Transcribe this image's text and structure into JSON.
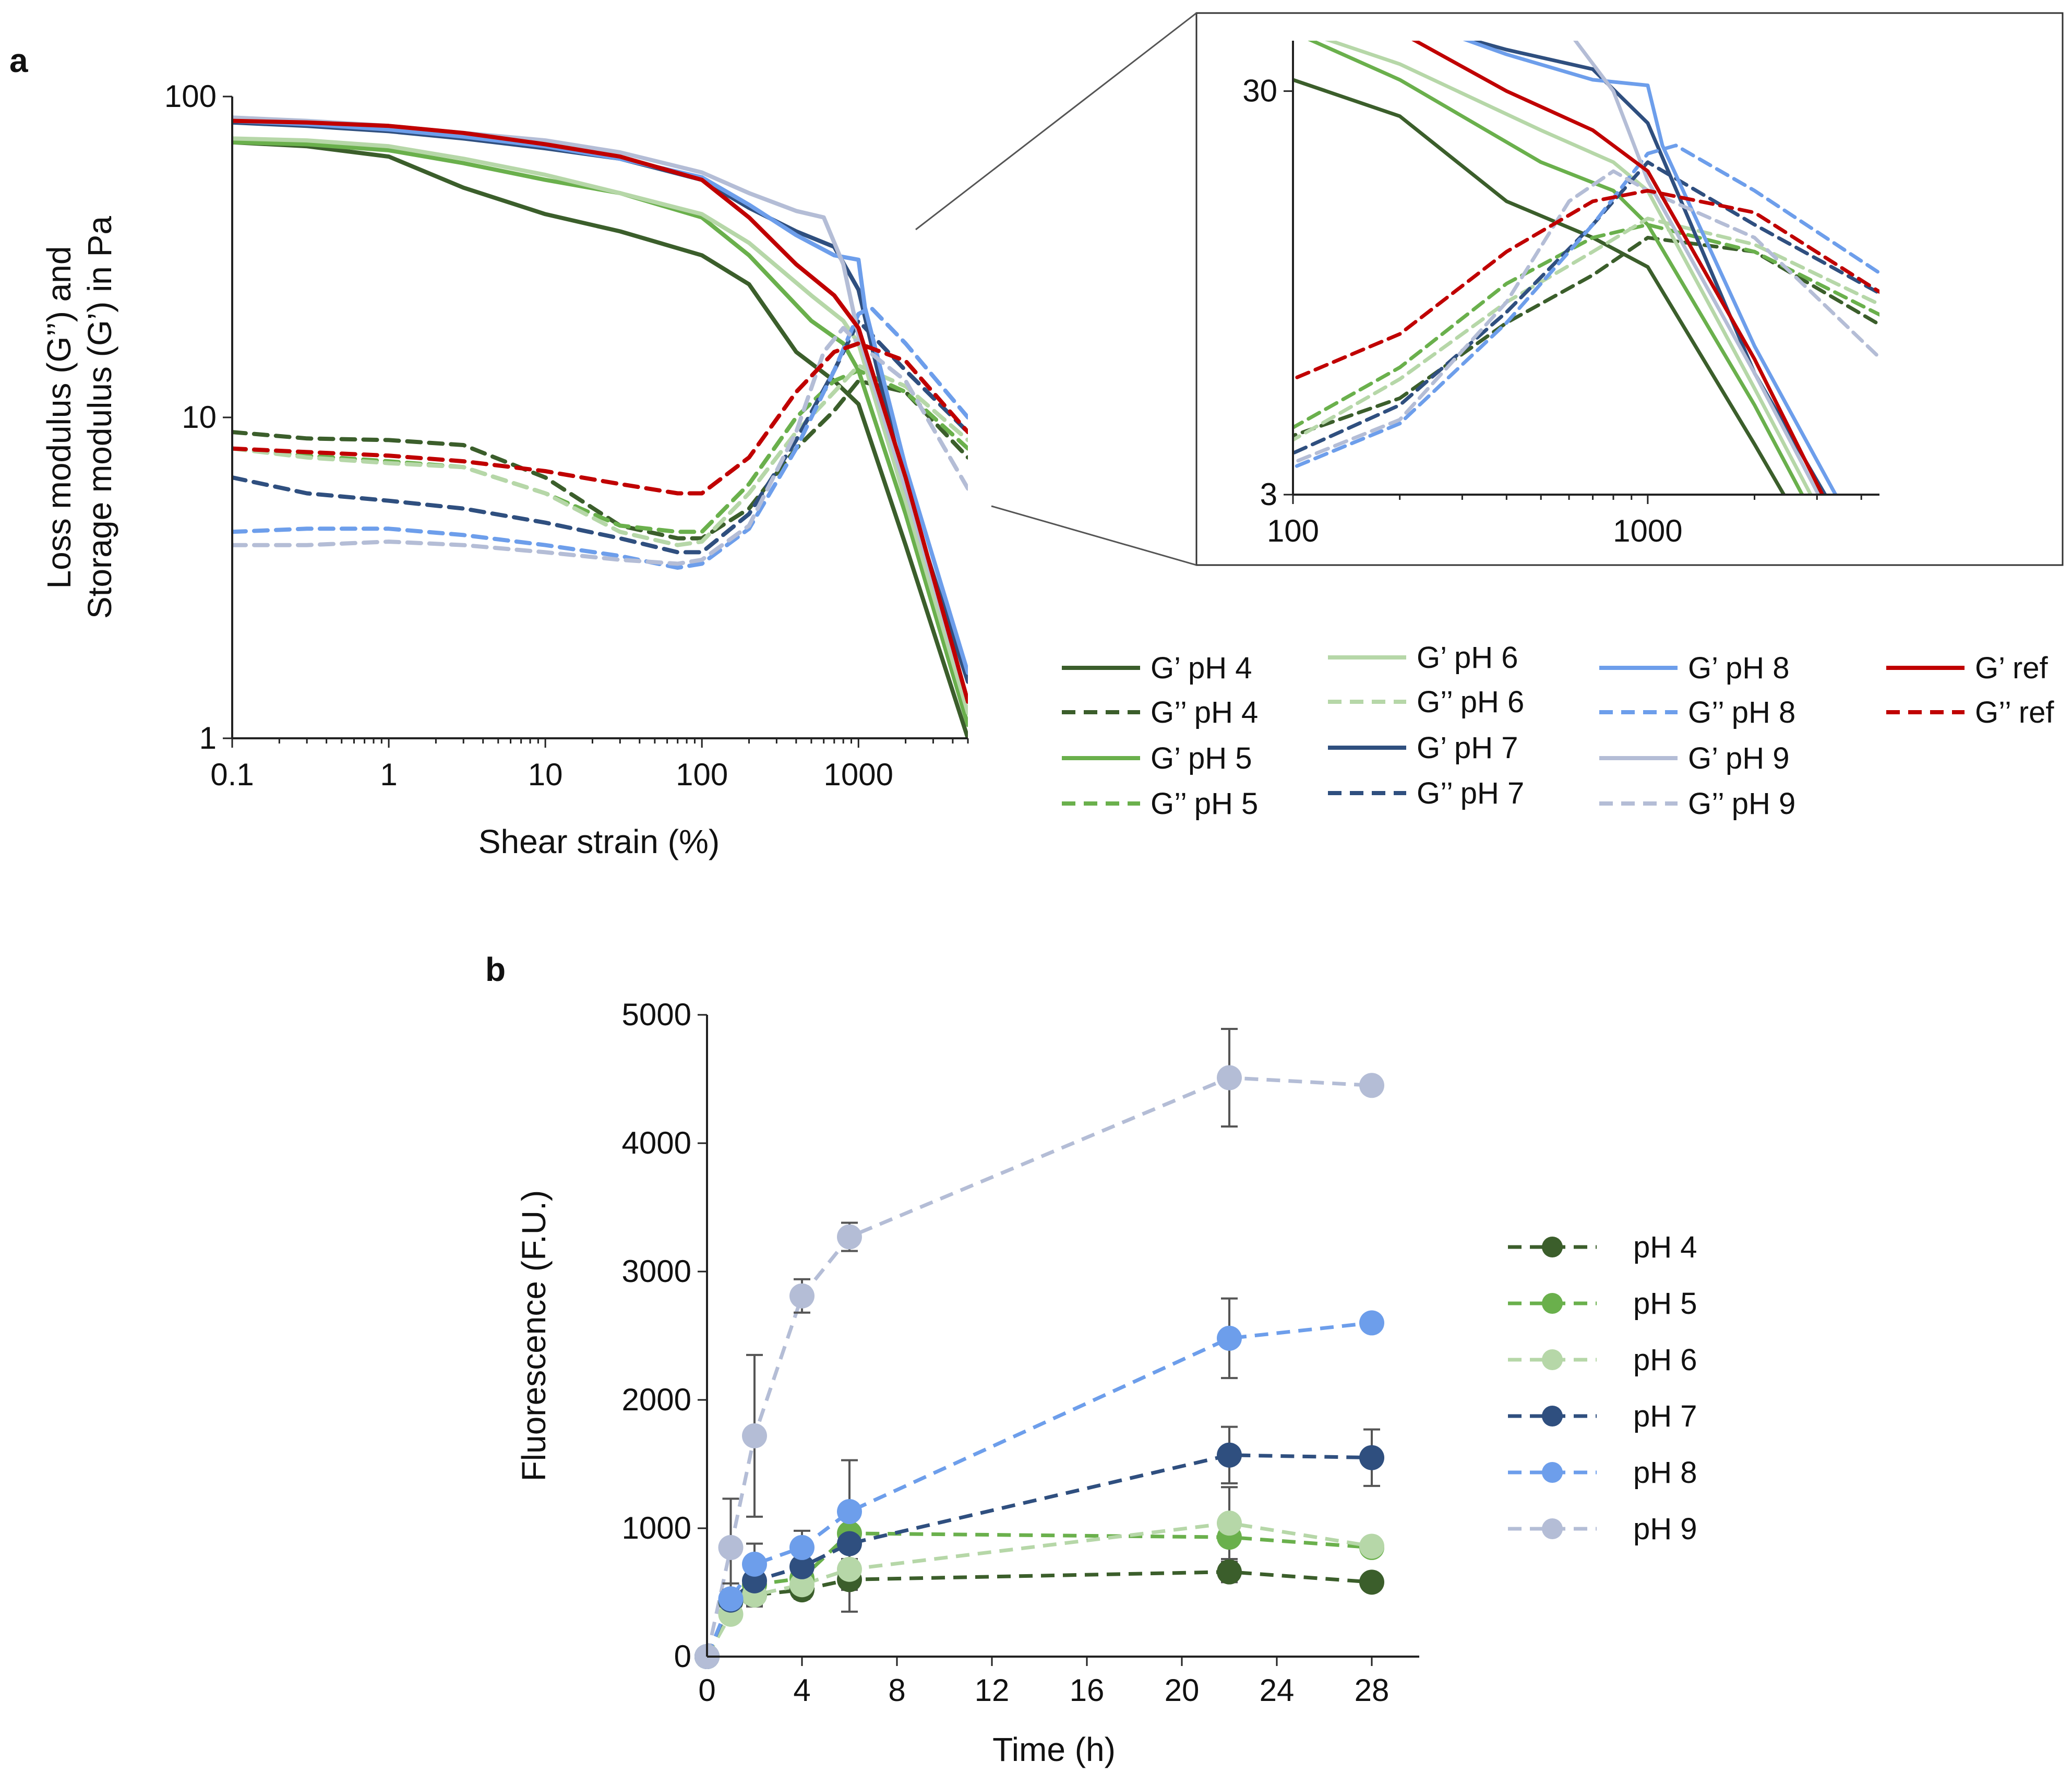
{
  "colors": {
    "pH4": "#3b5e2b",
    "pH5": "#6ab04c",
    "pH6": "#b6d7a8",
    "pH7": "#2f4f7f",
    "pH8": "#6d9eeb",
    "pH9": "#b4bdd6",
    "ref": "#c00000"
  },
  "chart_data": [
    {
      "panel": "a",
      "type": "line",
      "xscale": "log",
      "yscale": "log",
      "xlabel": "Shear strain (%)",
      "ylabel_lines": [
        "Loss modulus (G’’) and",
        "Storage modulus (G’) in Pa"
      ],
      "xlim": [
        0.1,
        5000
      ],
      "ylim": [
        1,
        100
      ],
      "xticks": [
        0.1,
        1,
        10,
        100,
        1000
      ],
      "xtick_labels": [
        "0.1",
        "1",
        "10",
        "100",
        "1000"
      ],
      "yticks": [
        1,
        10,
        100
      ],
      "ytick_labels": [
        "1",
        "10",
        "100"
      ],
      "series": [
        {
          "name": "G’  pH 4",
          "key": "pH4",
          "dash": false,
          "x": [
            0.1,
            0.3,
            1,
            3,
            10,
            30,
            100,
            200,
            400,
            700,
            1000,
            2000,
            5000
          ],
          "y": [
            72,
            70,
            65,
            52,
            43,
            38,
            32,
            26,
            16,
            13,
            11,
            4,
            1
          ]
        },
        {
          "name": "G’’ pH 4",
          "key": "pH4",
          "dash": true,
          "x": [
            0.1,
            0.3,
            1,
            3,
            10,
            30,
            70,
            100,
            200,
            400,
            700,
            1000,
            2000,
            5000
          ],
          "y": [
            9,
            8.6,
            8.5,
            8.2,
            6.5,
            4.6,
            4.2,
            4.2,
            5.2,
            8,
            10.5,
            13,
            12,
            7.5
          ]
        },
        {
          "name": "G’  pH 5",
          "key": "pH5",
          "dash": false,
          "x": [
            0.1,
            0.3,
            1,
            3,
            10,
            30,
            100,
            200,
            500,
            800,
            1000,
            2000,
            5000
          ],
          "y": [
            72,
            71,
            68,
            62,
            55,
            50,
            42,
            32,
            20,
            17,
            14,
            5,
            1.1
          ]
        },
        {
          "name": "G’’ pH 5",
          "key": "pH5",
          "dash": true,
          "x": [
            0.1,
            0.3,
            1,
            3,
            10,
            30,
            70,
            100,
            200,
            400,
            700,
            1000,
            2000,
            5000
          ],
          "y": [
            8,
            7.6,
            7.3,
            7,
            5.8,
            4.6,
            4.4,
            4.4,
            6.2,
            10,
            13,
            14,
            12,
            8
          ]
        },
        {
          "name": "G’  pH 6",
          "key": "pH6",
          "dash": false,
          "x": [
            0.1,
            0.3,
            1,
            3,
            10,
            30,
            100,
            200,
            500,
            800,
            1000,
            2000,
            5000
          ],
          "y": [
            74,
            73,
            70,
            64,
            57,
            50,
            43,
            35,
            24,
            20,
            17,
            5.5,
            1.2
          ]
        },
        {
          "name": "G’’ pH 6",
          "key": "pH6",
          "dash": true,
          "x": [
            0.1,
            0.3,
            1,
            3,
            10,
            30,
            70,
            100,
            200,
            400,
            700,
            1000,
            2000,
            5000
          ],
          "y": [
            8,
            7.5,
            7.2,
            7,
            5.8,
            4.4,
            4,
            4.1,
            5.8,
            9,
            12,
            14.5,
            12.5,
            8.5
          ]
        },
        {
          "name": "G’  pH 7",
          "key": "pH7",
          "dash": false,
          "x": [
            0.1,
            0.3,
            1,
            3,
            10,
            30,
            100,
            200,
            400,
            700,
            1000,
            2000,
            5000
          ],
          "y": [
            83,
            81,
            78,
            74,
            69,
            64,
            55,
            45,
            38,
            34,
            25,
            6,
            1.5
          ]
        },
        {
          "name": "G’’ pH 7",
          "key": "pH7",
          "dash": true,
          "x": [
            0.1,
            0.3,
            1,
            3,
            10,
            30,
            70,
            100,
            200,
            400,
            700,
            1000,
            2000,
            5000
          ],
          "y": [
            6.5,
            5.8,
            5.5,
            5.2,
            4.7,
            4.2,
            3.8,
            3.8,
            5,
            8.5,
            14,
            20,
            14,
            9
          ]
        },
        {
          "name": "G’  pH 8",
          "key": "pH8",
          "dash": false,
          "x": [
            0.1,
            0.3,
            1,
            3,
            10,
            30,
            100,
            200,
            400,
            700,
            1000,
            1100,
            2000,
            5000
          ],
          "y": [
            84,
            82,
            79,
            75,
            70,
            64,
            56,
            46,
            37,
            32,
            31,
            22,
            7,
            1.6
          ]
        },
        {
          "name": "G’’ pH 8",
          "key": "pH8",
          "dash": true,
          "x": [
            0.1,
            0.3,
            1,
            3,
            10,
            30,
            70,
            100,
            200,
            400,
            700,
            1000,
            1200,
            2000,
            5000
          ],
          "y": [
            4.4,
            4.5,
            4.5,
            4.3,
            4,
            3.7,
            3.4,
            3.5,
            4.5,
            8,
            14,
            21,
            22,
            17,
            10
          ]
        },
        {
          "name": "G’  pH 9",
          "key": "pH9",
          "dash": false,
          "x": [
            0.1,
            0.3,
            1,
            3,
            10,
            30,
            100,
            200,
            400,
            600,
            800,
            1000,
            2000,
            5000
          ],
          "y": [
            86,
            84,
            81,
            77,
            73,
            67,
            58,
            50,
            44,
            42,
            30,
            18,
            6,
            1.3
          ]
        },
        {
          "name": "G’’ pH 9",
          "key": "pH9",
          "dash": true,
          "x": [
            0.1,
            0.3,
            1,
            3,
            10,
            30,
            70,
            100,
            200,
            400,
            600,
            800,
            1000,
            2000,
            5000
          ],
          "y": [
            4,
            4,
            4.1,
            4,
            3.8,
            3.6,
            3.5,
            3.6,
            4.6,
            9,
            16,
            19,
            17,
            13,
            6
          ]
        },
        {
          "name": "G’  ref",
          "key": "ref",
          "dash": false,
          "x": [
            0.1,
            0.3,
            1,
            3,
            10,
            30,
            100,
            200,
            400,
            700,
            1000,
            2000,
            5000
          ],
          "y": [
            84,
            83,
            81,
            77,
            71,
            65,
            55,
            42,
            30,
            24,
            19,
            6.5,
            1.3
          ]
        },
        {
          "name": "G’’ ref",
          "key": "ref",
          "dash": true,
          "x": [
            0.1,
            0.3,
            1,
            3,
            10,
            30,
            70,
            100,
            200,
            400,
            700,
            1000,
            2000,
            5000
          ],
          "y": [
            8,
            7.8,
            7.6,
            7.3,
            6.8,
            6.2,
            5.8,
            5.8,
            7.5,
            12,
            16,
            17,
            15,
            9
          ]
        }
      ],
      "inset": {
        "xlim": [
          100,
          4500
        ],
        "ylim": [
          3,
          40
        ],
        "xticks": [
          100,
          1000
        ],
        "xtick_labels": [
          "100",
          "1000"
        ],
        "yticks": [
          3,
          30
        ],
        "ytick_labels": [
          "3",
          "30"
        ]
      },
      "legend_position": "bottom-right"
    },
    {
      "panel": "b",
      "type": "line",
      "xlabel": "Time (h)",
      "ylabel": "Fluorescence (F.U.)",
      "xlim": [
        0,
        30
      ],
      "ylim": [
        0,
        5000
      ],
      "xticks": [
        0,
        4,
        8,
        12,
        16,
        20,
        24,
        28
      ],
      "xtick_labels": [
        "0",
        "4",
        "8",
        "12",
        "16",
        "20",
        "24",
        "28"
      ],
      "yticks": [
        0,
        1000,
        2000,
        3000,
        4000,
        5000
      ],
      "ytick_labels": [
        "0",
        "1000",
        "2000",
        "3000",
        "4000",
        "5000"
      ],
      "x": [
        0,
        1,
        2,
        4,
        6,
        22,
        28
      ],
      "series": [
        {
          "name": "pH 4",
          "key": "pH4",
          "values": [
            0,
            430,
            480,
            520,
            600,
            660,
            580
          ],
          "err": [
            0,
            60,
            80,
            70,
            80,
            80,
            0
          ]
        },
        {
          "name": "pH 5",
          "key": "pH5",
          "values": [
            0,
            440,
            560,
            610,
            960,
            930,
            850
          ],
          "err": [
            0,
            80,
            100,
            90,
            0,
            0,
            0
          ]
        },
        {
          "name": "pH 6",
          "key": "pH6",
          "values": [
            0,
            330,
            480,
            560,
            680,
            1040,
            860
          ],
          "err": [
            0,
            60,
            90,
            90,
            330,
            280,
            0
          ]
        },
        {
          "name": "pH 7",
          "key": "pH7",
          "values": [
            0,
            440,
            590,
            700,
            880,
            1570,
            1550
          ],
          "err": [
            0,
            80,
            120,
            150,
            120,
            220,
            220
          ]
        },
        {
          "name": "pH 8",
          "key": "pH8",
          "values": [
            0,
            450,
            720,
            850,
            1130,
            2480,
            2600
          ],
          "err": [
            0,
            120,
            160,
            130,
            400,
            310,
            0
          ]
        },
        {
          "name": "pH 9",
          "key": "pH9",
          "values": [
            0,
            850,
            1720,
            2810,
            3270,
            4510,
            4450
          ],
          "err": [
            0,
            380,
            630,
            130,
            110,
            380,
            0
          ]
        }
      ],
      "legend_position": "right"
    }
  ],
  "labels": {
    "panel_a": "a",
    "panel_b": "b"
  }
}
